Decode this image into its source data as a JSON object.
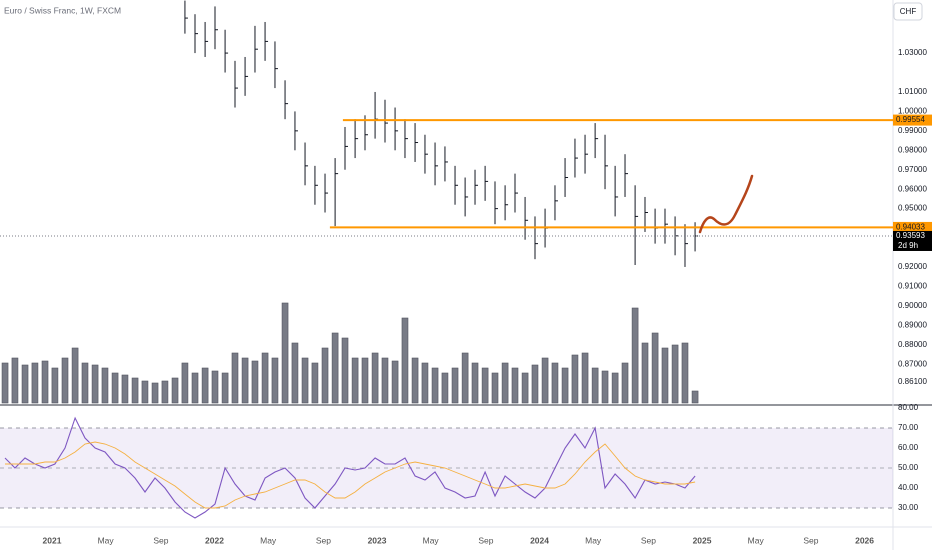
{
  "title": "Euro / Swiss Franc, 1W, FXCM",
  "currency": "CHF",
  "countdown": "2d 9h",
  "chart_data": [
    {
      "type": "ohlc",
      "xlim": [
        2020.68,
        2026.175
      ],
      "ylim": [
        0.849,
        1.0573
      ],
      "yticks": [
        {
          "value": 1.03,
          "label": "1.03000"
        },
        {
          "value": 1.01,
          "label": "1.01000"
        },
        {
          "value": 1.0,
          "label": "1.00000"
        },
        {
          "value": 0.99,
          "label": "0.99000"
        },
        {
          "value": 0.98,
          "label": "0.98000"
        },
        {
          "value": 0.97,
          "label": "0.97000"
        },
        {
          "value": 0.96,
          "label": "0.96000"
        },
        {
          "value": 0.95,
          "label": "0.95000"
        },
        {
          "value": 0.92,
          "label": "0.92000"
        },
        {
          "value": 0.91,
          "label": "0.91000"
        },
        {
          "value": 0.9,
          "label": "0.90000"
        },
        {
          "value": 0.89,
          "label": "0.89000"
        },
        {
          "value": 0.88,
          "label": "0.88000"
        },
        {
          "value": 0.87,
          "label": "0.87000"
        },
        {
          "value": 0.861,
          "label": "0.86100"
        }
      ],
      "x": [
        2021.818,
        2021.88,
        2021.942,
        2022.003,
        2022.065,
        2022.126,
        2022.188,
        2022.249,
        2022.311,
        2022.372,
        2022.434,
        2022.495,
        2022.557,
        2022.618,
        2022.68,
        2022.742,
        2022.803,
        2022.865,
        2022.926,
        2022.988,
        2023.049,
        2023.111,
        2023.172,
        2023.234,
        2023.295,
        2023.357,
        2023.418,
        2023.48,
        2023.542,
        2023.603,
        2023.665,
        2023.726,
        2023.788,
        2023.849,
        2023.911,
        2023.972,
        2024.034,
        2024.095,
        2024.157,
        2024.218,
        2024.28,
        2024.342,
        2024.403,
        2024.465,
        2024.526,
        2024.588,
        2024.649,
        2024.711,
        2024.772,
        2024.834,
        2024.895,
        2024.957
      ],
      "high": [
        1.057,
        1.05,
        1.046,
        1.054,
        1.042,
        1.026,
        1.028,
        1.044,
        1.046,
        1.036,
        1.016,
        1.0,
        0.984,
        0.972,
        0.968,
        0.976,
        0.992,
        0.996,
        0.998,
        1.01,
        1.006,
        1.002,
        0.996,
        0.994,
        0.988,
        0.984,
        0.982,
        0.972,
        0.966,
        0.97,
        0.972,
        0.964,
        0.962,
        0.968,
        0.956,
        0.946,
        0.95,
        0.962,
        0.976,
        0.986,
        0.988,
        0.994,
        0.988,
        0.972,
        0.978,
        0.962,
        0.956,
        0.95,
        0.95,
        0.946,
        0.942,
        0.943
      ],
      "low": [
        1.04,
        1.03,
        1.028,
        1.032,
        1.02,
        1.002,
        1.008,
        1.02,
        1.026,
        1.012,
        0.996,
        0.98,
        0.962,
        0.952,
        0.948,
        0.941,
        0.97,
        0.976,
        0.98,
        0.986,
        0.984,
        0.98,
        0.976,
        0.974,
        0.968,
        0.962,
        0.964,
        0.952,
        0.946,
        0.952,
        0.954,
        0.942,
        0.944,
        0.948,
        0.934,
        0.924,
        0.93,
        0.944,
        0.956,
        0.966,
        0.968,
        0.976,
        0.96,
        0.946,
        0.956,
        0.921,
        0.938,
        0.932,
        0.932,
        0.926,
        0.92,
        0.928
      ],
      "close": [
        1.048,
        1.04,
        1.036,
        1.042,
        1.03,
        1.012,
        1.018,
        1.032,
        1.036,
        1.022,
        1.004,
        0.99,
        0.972,
        0.962,
        0.958,
        0.968,
        0.982,
        0.986,
        0.988,
        0.996,
        0.994,
        0.99,
        0.986,
        0.984,
        0.978,
        0.972,
        0.974,
        0.962,
        0.956,
        0.962,
        0.964,
        0.95,
        0.952,
        0.958,
        0.944,
        0.932,
        0.94,
        0.954,
        0.966,
        0.976,
        0.978,
        0.986,
        0.972,
        0.956,
        0.968,
        0.946,
        0.948,
        0.94,
        0.942,
        0.936,
        0.932,
        0.93593
      ],
      "color": "#131722",
      "levels": [
        {
          "value": 0.99554,
          "start": 2022.79
        },
        {
          "value": 0.94033,
          "start": 2022.71
        }
      ],
      "level_color": "#ff9800"
    },
    {
      "type": "bar",
      "xlim": [
        2020.68,
        2026.175
      ],
      "x": [
        2020.711,
        2020.772,
        2020.834,
        2020.895,
        2020.957,
        2021.018,
        2021.08,
        2021.142,
        2021.203,
        2021.265,
        2021.326,
        2021.388,
        2021.449,
        2021.511,
        2021.572,
        2021.634,
        2021.695,
        2021.757,
        2021.818,
        2021.88,
        2021.942,
        2022.003,
        2022.065,
        2022.126,
        2022.188,
        2022.249,
        2022.311,
        2022.372,
        2022.434,
        2022.495,
        2022.557,
        2022.618,
        2022.68,
        2022.742,
        2022.803,
        2022.865,
        2022.926,
        2022.988,
        2023.049,
        2023.111,
        2023.172,
        2023.234,
        2023.295,
        2023.357,
        2023.418,
        2023.48,
        2023.542,
        2023.603,
        2023.665,
        2023.726,
        2023.788,
        2023.849,
        2023.911,
        2023.972,
        2024.034,
        2024.095,
        2024.157,
        2024.218,
        2024.28,
        2024.342,
        2024.403,
        2024.465,
        2024.526,
        2024.588,
        2024.649,
        2024.711,
        2024.772,
        2024.834,
        2024.895,
        2024.957
      ],
      "values": [
        40,
        45,
        38,
        40,
        42,
        35,
        45,
        55,
        40,
        38,
        35,
        30,
        28,
        25,
        22,
        20,
        22,
        25,
        40,
        30,
        35,
        32,
        30,
        50,
        45,
        42,
        50,
        45,
        100,
        60,
        45,
        40,
        55,
        70,
        65,
        45,
        45,
        50,
        45,
        42,
        85,
        45,
        40,
        35,
        30,
        35,
        50,
        40,
        35,
        30,
        40,
        35,
        30,
        38,
        45,
        40,
        35,
        48,
        50,
        35,
        32,
        30,
        40,
        95,
        60,
        70,
        55,
        58,
        60,
        12
      ],
      "color": "#787b86"
    },
    {
      "type": "line",
      "xlim": [
        2020.68,
        2026.175
      ],
      "ylim": [
        20.5,
        81.5
      ],
      "yticks": [
        {
          "value": 80,
          "label": "80.00"
        },
        {
          "value": 70,
          "label": "70.00"
        },
        {
          "value": 60,
          "label": "60.00"
        },
        {
          "value": 50,
          "label": "50.00"
        },
        {
          "value": 40,
          "label": "40.00"
        },
        {
          "value": 30,
          "label": "30.00"
        }
      ],
      "xticks": [
        2021,
        {
          "value": 2021.33,
          "label": "May"
        },
        {
          "value": 2021.67,
          "label": "Sep"
        },
        2022,
        {
          "value": 2022.33,
          "label": "May"
        },
        {
          "value": 2022.67,
          "label": "Sep"
        },
        2023,
        {
          "value": 2023.33,
          "label": "May"
        },
        {
          "value": 2023.67,
          "label": "Sep"
        },
        2024,
        {
          "value": 2024.33,
          "label": "May"
        },
        {
          "value": 2024.67,
          "label": "Sep"
        },
        2025,
        {
          "value": 2025.33,
          "label": "May"
        },
        {
          "value": 2025.67,
          "label": "Sep"
        },
        2026
      ],
      "band": [
        30,
        70
      ],
      "midline": 50,
      "band_color": "#7e57c2",
      "x": [
        2020.711,
        2020.772,
        2020.834,
        2020.895,
        2020.957,
        2021.018,
        2021.08,
        2021.142,
        2021.203,
        2021.265,
        2021.326,
        2021.388,
        2021.449,
        2021.511,
        2021.572,
        2021.634,
        2021.695,
        2021.757,
        2021.818,
        2021.88,
        2021.942,
        2022.003,
        2022.065,
        2022.126,
        2022.188,
        2022.249,
        2022.311,
        2022.372,
        2022.434,
        2022.495,
        2022.557,
        2022.618,
        2022.68,
        2022.742,
        2022.803,
        2022.865,
        2022.926,
        2022.988,
        2023.049,
        2023.111,
        2023.172,
        2023.234,
        2023.295,
        2023.357,
        2023.418,
        2023.48,
        2023.542,
        2023.603,
        2023.665,
        2023.726,
        2023.788,
        2023.849,
        2023.911,
        2023.972,
        2024.034,
        2024.095,
        2024.157,
        2024.218,
        2024.28,
        2024.342,
        2024.403,
        2024.465,
        2024.526,
        2024.588,
        2024.649,
        2024.711,
        2024.772,
        2024.834,
        2024.895,
        2024.957
      ],
      "series": [
        {
          "color": "#7e57c2",
          "values": [
            55,
            50,
            55,
            52,
            50,
            52,
            60,
            75,
            65,
            60,
            58,
            52,
            50,
            45,
            38,
            45,
            40,
            33,
            28,
            25,
            28,
            32,
            50,
            42,
            36,
            34,
            45,
            48,
            50,
            45,
            35,
            30,
            36,
            42,
            50,
            49,
            50,
            55,
            52,
            52,
            55,
            46,
            44,
            48,
            40,
            38,
            35,
            36,
            48,
            36,
            46,
            42,
            38,
            35,
            40,
            50,
            60,
            67,
            60,
            70,
            40,
            47,
            42,
            35,
            44,
            42,
            43,
            42,
            40,
            46
          ]
        },
        {
          "color": "#f5b041",
          "values": [
            52,
            52,
            52,
            52,
            53,
            53,
            55,
            58,
            62,
            63,
            62,
            60,
            57,
            53,
            50,
            47,
            44,
            41,
            37,
            33,
            30,
            30,
            31,
            34,
            36,
            37,
            38,
            40,
            42,
            44,
            44,
            42,
            38,
            35,
            35,
            38,
            42,
            45,
            48,
            50,
            52,
            53,
            52,
            51,
            50,
            48,
            46,
            44,
            42,
            40,
            40,
            41,
            42,
            41,
            40,
            40,
            42,
            47,
            53,
            58,
            62,
            56,
            50,
            46,
            44,
            43,
            42,
            42,
            42,
            43
          ]
        }
      ]
    }
  ]
}
